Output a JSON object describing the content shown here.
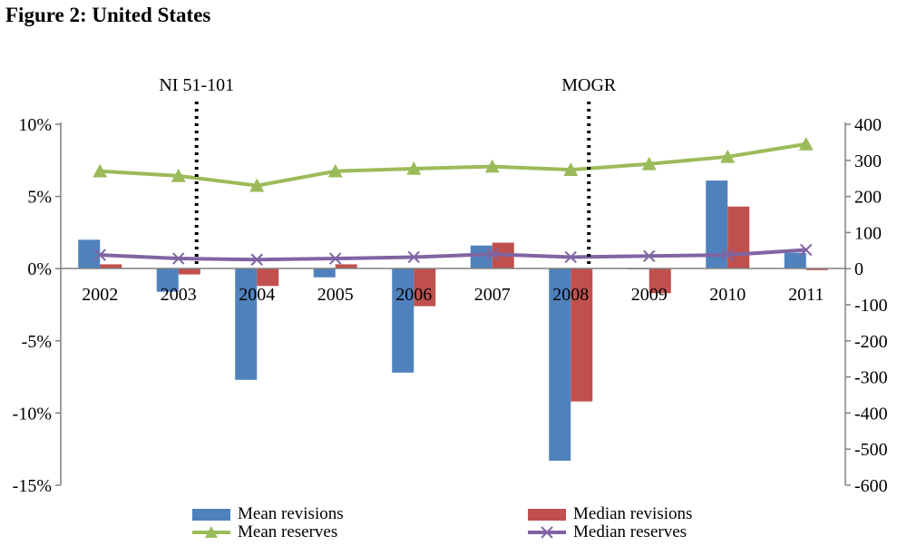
{
  "figure": {
    "title": "Figure 2: United States"
  },
  "chart_data": {
    "type": "bar",
    "categories": [
      "2002",
      "2003",
      "2004",
      "2005",
      "2006",
      "2007",
      "2008",
      "2009",
      "2010",
      "2011"
    ],
    "series": [
      {
        "name": "Mean revisions",
        "type": "bar",
        "axis": "left",
        "color": "#4F81BD",
        "values": [
          2.0,
          -1.6,
          -7.7,
          -0.6,
          -7.2,
          1.6,
          -13.3,
          0.0,
          6.1,
          1.1
        ]
      },
      {
        "name": "Median revisions",
        "type": "bar",
        "axis": "left",
        "color": "#C0504D",
        "values": [
          0.3,
          -0.4,
          -1.2,
          0.3,
          -2.6,
          1.8,
          -9.2,
          -1.7,
          4.3,
          -0.1
        ]
      },
      {
        "name": "Mean reserves",
        "type": "line",
        "axis": "right",
        "color": "#9BBB59",
        "marker": "triangle",
        "values": [
          270,
          257,
          230,
          270,
          277,
          283,
          274,
          290,
          310,
          345
        ]
      },
      {
        "name": "Median reserves",
        "type": "line",
        "axis": "right",
        "color": "#8064A2",
        "marker": "x",
        "values": [
          38,
          28,
          25,
          28,
          32,
          40,
          32,
          35,
          38,
          52
        ]
      }
    ],
    "y_left": {
      "ylim": [
        -15,
        10
      ],
      "ticks": [
        "10%",
        "5%",
        "0%",
        "-5%",
        "-10%",
        "-15%"
      ],
      "tick_values": [
        10,
        5,
        0,
        -5,
        -10,
        -15
      ]
    },
    "y_right": {
      "ylim": [
        -600,
        400
      ],
      "ticks": [
        "400",
        "300",
        "200",
        "100",
        "0",
        "-100",
        "-200",
        "-300",
        "-400",
        "-500",
        "-600"
      ],
      "tick_values": [
        400,
        300,
        200,
        100,
        0,
        -100,
        -200,
        -300,
        -400,
        -500,
        -600
      ]
    },
    "annotations": [
      {
        "label": "NI 51-101",
        "category": "2003"
      },
      {
        "label": "MOGR",
        "category": "2008"
      }
    ],
    "grid": false,
    "legend_position": "bottom"
  }
}
